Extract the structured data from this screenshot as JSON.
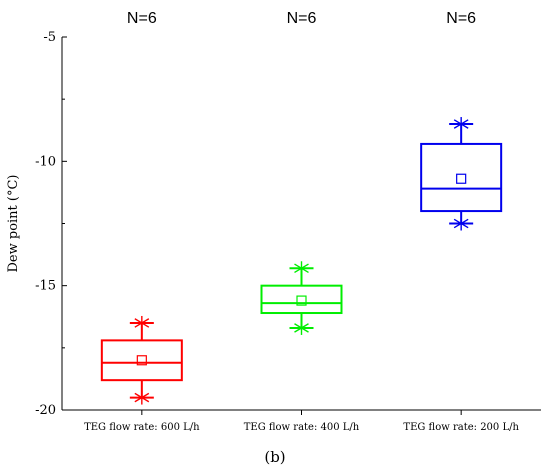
{
  "chart_data": {
    "type": "box",
    "title": "",
    "xlabel": "",
    "ylabel": "Dew point (°C)",
    "ylim": [
      -20,
      -5
    ],
    "yticks": [
      "-5",
      "-10",
      "-15",
      "-20"
    ],
    "grid": false,
    "categories": [
      "TEG flow rate: 600 L/h",
      "TEG flow rate: 400 L/h",
      "TEG flow rate: 200 L/h"
    ],
    "n_labels": [
      "N=6",
      "N=6",
      "N=6"
    ],
    "series": [
      {
        "color": "#ff0000",
        "min": -19.5,
        "q1": -18.8,
        "median": -18.1,
        "mean": -18.0,
        "q3": -17.2,
        "max": -16.5
      },
      {
        "color": "#00ee00",
        "min": -16.7,
        "q1": -16.1,
        "median": -15.7,
        "mean": -15.6,
        "q3": -15.0,
        "max": -14.3
      },
      {
        "color": "#0000ee",
        "min": -12.5,
        "q1": -12.0,
        "median": -11.1,
        "mean": -10.7,
        "q3": -9.3,
        "max": -8.5
      }
    ]
  },
  "figure_label": "(b)"
}
